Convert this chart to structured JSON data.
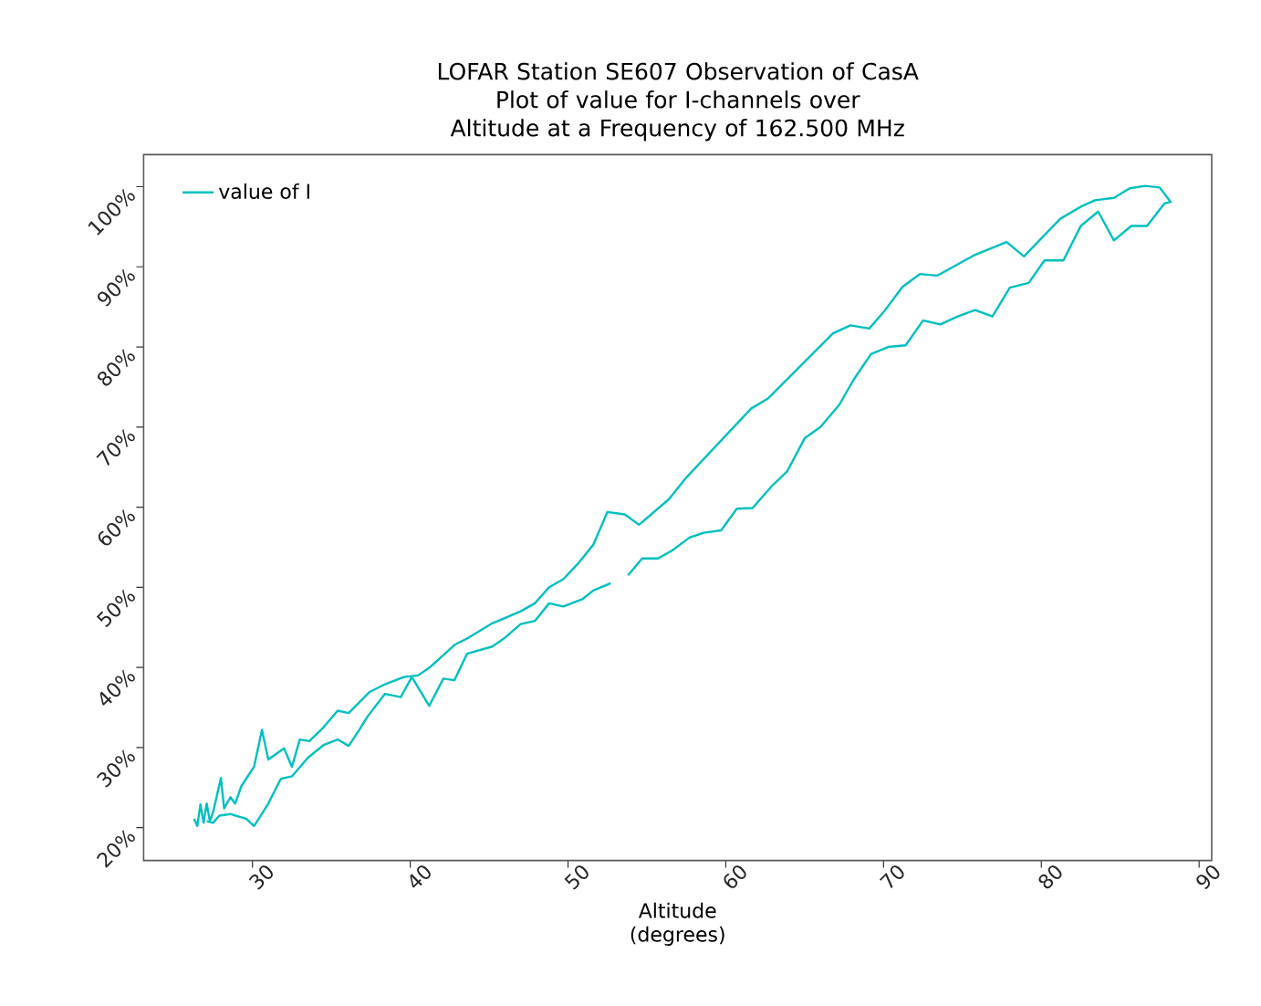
{
  "chart_data": {
    "type": "line",
    "title": "LOFAR Station SE607 Observation of CasA",
    "subtitle": "Plot of value for I-channels over Altitude at a Frequency of 162.500 MHz",
    "xlabel": "Altitude (degrees)",
    "xlim": [
      23.1,
      90.8
    ],
    "ylim": [
      15.9,
      104
    ],
    "xticks": [
      30,
      40,
      50,
      60,
      70,
      80,
      90
    ],
    "yticks": [
      {
        "value": 20,
        "label": "20%"
      },
      {
        "value": 30,
        "label": "30%"
      },
      {
        "value": 40,
        "label": "40%"
      },
      {
        "value": 50,
        "label": "50%"
      },
      {
        "value": 60,
        "label": "60%"
      },
      {
        "value": 70,
        "label": "70%"
      },
      {
        "value": 80,
        "label": "80%"
      },
      {
        "value": 90,
        "label": "90%"
      },
      {
        "value": 100,
        "label": "100%"
      }
    ],
    "legend": "top left",
    "marker": "none",
    "line_style": "solid",
    "series": [
      {
        "name": "value of I",
        "color": "#00bfbf",
        "x": [
          26.3,
          26.5,
          26.7,
          26.9,
          27.1,
          27.3,
          27.5,
          28.0,
          28.2,
          28.6,
          28.9,
          29.3,
          30.1,
          30.6,
          31.0,
          32.0,
          32.5,
          33.0,
          33.6,
          34.4,
          35.4,
          36.1,
          37.4,
          38.4,
          39.6,
          40.5,
          41.3,
          42.8,
          43.6,
          45.2,
          47.0,
          47.9,
          48.8,
          49.7,
          50.7,
          51.6,
          52.5,
          53.6,
          54.5,
          56.4,
          57.5,
          61.6,
          62.7,
          66.8,
          67.9,
          69.1,
          70.1,
          71.2,
          72.3,
          73.4,
          75.7,
          77.8,
          78.9,
          81.2,
          82.5,
          83.4,
          84.6,
          85.6,
          86.6,
          87.5,
          88.2,
          87.8,
          86.7,
          85.7,
          84.6,
          83.6,
          82.5,
          81.4,
          80.2,
          79.2,
          78.0,
          76.9,
          75.8,
          74.7,
          73.6,
          72.5,
          71.4,
          70.3,
          69.2,
          68.1,
          67.2,
          66.0,
          65.0,
          63.9,
          62.9,
          61.7,
          60.7,
          59.7,
          58.6,
          57.7,
          56.6,
          55.7,
          54.7,
          53.8,
          53.2,
          52.7,
          51.6,
          50.9,
          49.7,
          48.8,
          47.9,
          47.0,
          46.0,
          45.2,
          43.6,
          42.8,
          42.1,
          41.2,
          40.1,
          39.4,
          38.4,
          37.3,
          36.8,
          36.1,
          35.4,
          34.5,
          33.5,
          32.5,
          31.8,
          31.0,
          30.1,
          29.6,
          28.6,
          27.9,
          27.5,
          27.1
        ],
        "values": [
          21.1,
          20.2,
          22.9,
          20.6,
          23.0,
          20.8,
          21.9,
          26.2,
          22.4,
          23.8,
          23.0,
          25.2,
          27.6,
          32.2,
          28.5,
          29.9,
          27.6,
          31.0,
          30.8,
          32.3,
          34.6,
          34.3,
          36.9,
          37.9,
          38.8,
          39.0,
          40.1,
          42.8,
          43.6,
          45.5,
          47.0,
          48.0,
          50.0,
          51.0,
          53.1,
          55.3,
          59.4,
          59.1,
          57.8,
          61.0,
          63.7,
          72.3,
          73.6,
          81.7,
          82.7,
          82.3,
          84.6,
          87.5,
          89.1,
          88.9,
          91.4,
          93.1,
          91.3,
          96.0,
          97.5,
          98.3,
          98.6,
          99.8,
          100.1,
          99.9,
          98.1,
          97.9,
          95.1,
          95.1,
          93.3,
          96.9,
          95.1,
          90.8,
          90.8,
          88.0,
          87.4,
          83.8,
          84.6,
          83.8,
          82.8,
          83.3,
          80.2,
          80.0,
          79.1,
          75.9,
          72.8,
          70.0,
          68.6,
          64.5,
          62.6,
          59.9,
          59.8,
          57.1,
          56.8,
          56.2,
          54.6,
          53.6,
          53.6,
          51.5,
          null,
          50.5,
          49.6,
          48.5,
          47.6,
          48.0,
          45.8,
          45.4,
          43.7,
          42.6,
          41.7,
          38.4,
          38.6,
          35.2,
          38.8,
          36.3,
          36.7,
          33.9,
          32.3,
          30.2,
          31.0,
          30.3,
          28.7,
          26.4,
          26.1,
          23.0,
          20.2,
          21.1,
          21.7,
          21.5,
          20.6,
          20.8
        ]
      }
    ]
  }
}
